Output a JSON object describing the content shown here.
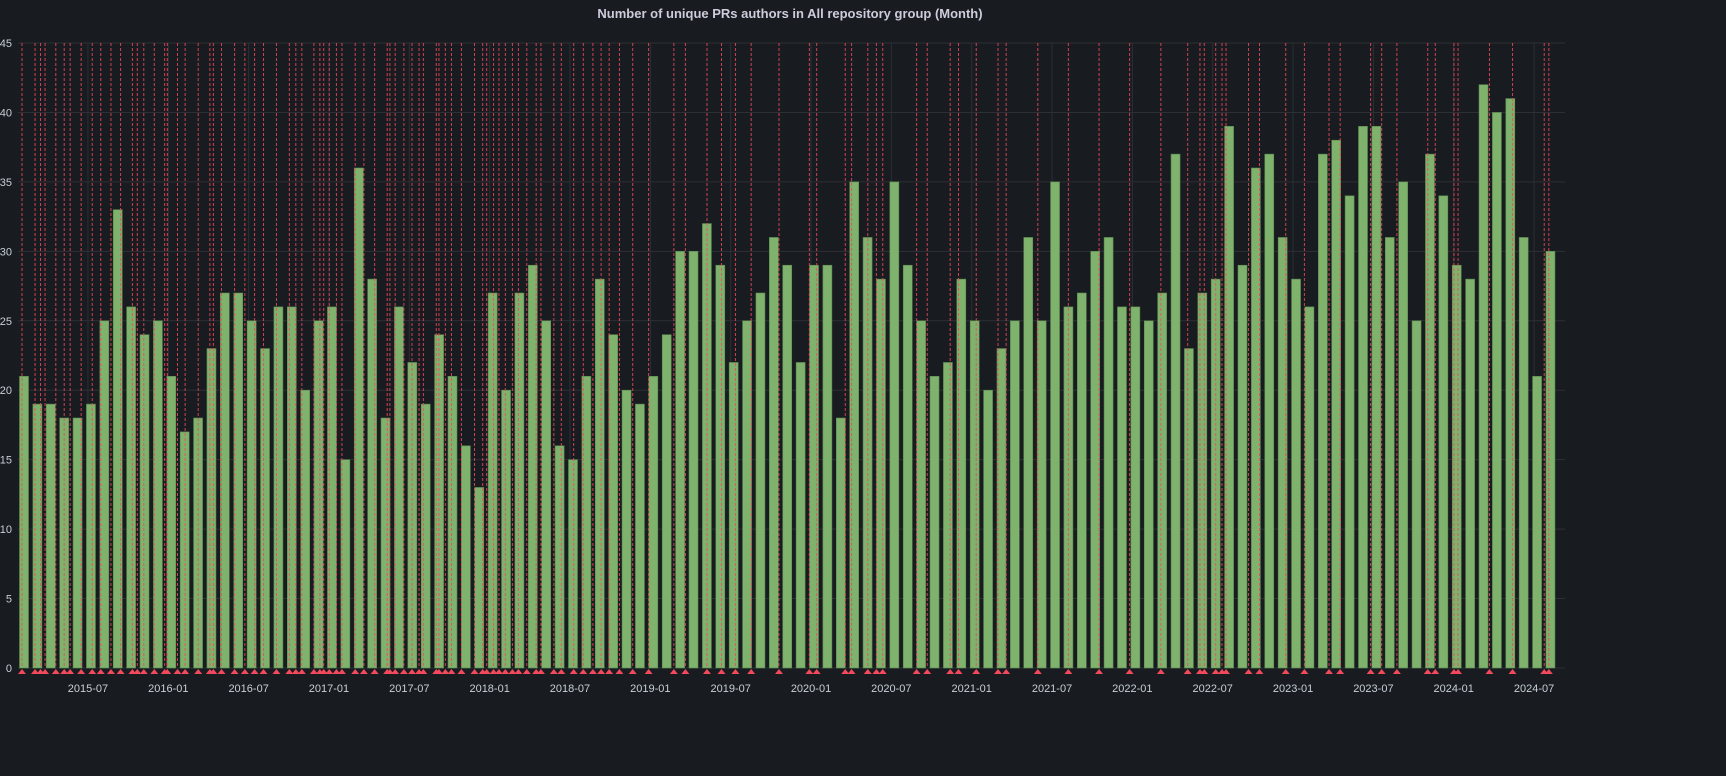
{
  "chart_data": {
    "type": "bar",
    "title": "Number of unique PRs authors in All repository group (Month)",
    "xlabel": "",
    "ylabel": "",
    "ylim": [
      0,
      45
    ],
    "yticks": [
      "0",
      "5",
      "10",
      "15",
      "20",
      "25",
      "30",
      "35",
      "40",
      "45"
    ],
    "start_month": "2015-02",
    "xtick_labels": [
      "2015-07",
      "2016-01",
      "2016-07",
      "2017-01",
      "2017-07",
      "2018-01",
      "2018-07",
      "2019-01",
      "2019-07",
      "2020-01",
      "2020-07",
      "2021-01",
      "2021-07",
      "2022-01",
      "2022-07",
      "2023-01",
      "2023-07",
      "2024-01",
      "2024-07"
    ],
    "values": [
      21,
      19,
      19,
      18,
      18,
      19,
      25,
      33,
      26,
      24,
      25,
      21,
      17,
      18,
      23,
      27,
      27,
      25,
      23,
      26,
      26,
      20,
      25,
      26,
      15,
      36,
      28,
      18,
      26,
      22,
      19,
      24,
      21,
      16,
      13,
      27,
      20,
      27,
      29,
      25,
      16,
      15,
      21,
      28,
      24,
      20,
      19,
      21,
      24,
      30,
      30,
      32,
      29,
      22,
      25,
      27,
      31,
      29,
      22,
      29,
      29,
      18,
      35,
      31,
      28,
      35,
      29,
      25,
      21,
      22,
      28,
      25,
      20,
      23,
      25,
      31,
      25,
      35,
      26,
      27,
      30,
      31,
      26,
      26,
      25,
      27,
      37,
      23,
      27,
      28,
      39,
      29,
      36,
      37,
      31,
      28,
      26,
      37,
      38,
      34,
      39,
      39,
      31,
      35,
      25,
      37,
      34,
      29,
      28,
      42,
      40,
      41,
      31,
      21,
      30
    ],
    "grid": true,
    "annotations": true,
    "colors": {
      "bar": "#7eb26d",
      "annotation": "#f2495c",
      "background": "#181b1f",
      "grid": "#2c3035"
    }
  }
}
